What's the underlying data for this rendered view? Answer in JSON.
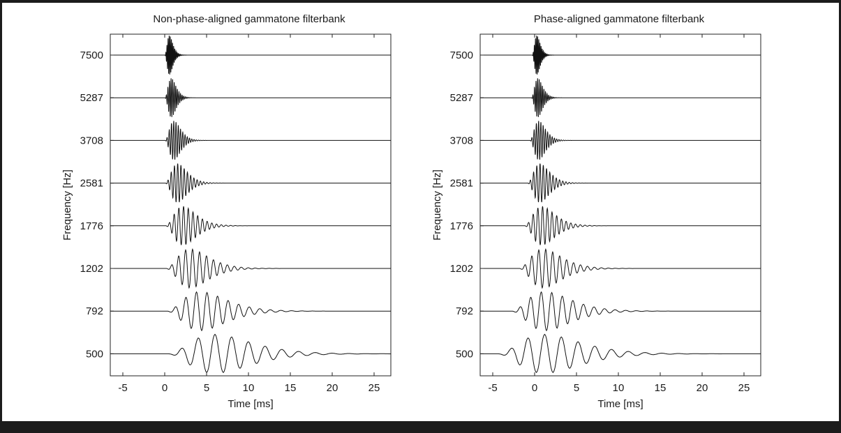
{
  "chart_data": [
    {
      "type": "line",
      "title": "Non-phase-aligned gammatone filterbank",
      "xlabel": "Time [ms]",
      "ylabel": "Frequency [Hz]",
      "xlim": [
        -6.5,
        27
      ],
      "xticks": [
        -5,
        0,
        5,
        10,
        15,
        20,
        25
      ],
      "yticks": [
        7500,
        5287,
        3708,
        2581,
        1776,
        1202,
        792,
        500
      ],
      "grid": false,
      "series": [
        {
          "center_freq_hz": 7500,
          "start_ms": 0
        },
        {
          "center_freq_hz": 5287,
          "start_ms": 0
        },
        {
          "center_freq_hz": 3708,
          "start_ms": 0
        },
        {
          "center_freq_hz": 2581,
          "start_ms": 0
        },
        {
          "center_freq_hz": 1776,
          "start_ms": 0
        },
        {
          "center_freq_hz": 1202,
          "start_ms": 0
        },
        {
          "center_freq_hz": 792,
          "start_ms": 0
        },
        {
          "center_freq_hz": 500,
          "start_ms": 0
        }
      ]
    },
    {
      "type": "line",
      "title": "Phase-aligned gammatone filterbank",
      "xlabel": "Time [ms]",
      "ylabel": "Frequency [Hz]",
      "xlim": [
        -6.5,
        27
      ],
      "xticks": [
        -5,
        0,
        5,
        10,
        15,
        20,
        25
      ],
      "yticks": [
        7500,
        5287,
        3708,
        2581,
        1776,
        1202,
        792,
        500
      ],
      "grid": false,
      "series": [
        {
          "center_freq_hz": 7500,
          "start_ms": -0.3
        },
        {
          "center_freq_hz": 5287,
          "start_ms": -0.4
        },
        {
          "center_freq_hz": 3708,
          "start_ms": -0.6
        },
        {
          "center_freq_hz": 2581,
          "start_ms": -0.9
        },
        {
          "center_freq_hz": 1776,
          "start_ms": -1.3
        },
        {
          "center_freq_hz": 1202,
          "start_ms": -2.0
        },
        {
          "center_freq_hz": 792,
          "start_ms": -3.0
        },
        {
          "center_freq_hz": 500,
          "start_ms": -4.8
        }
      ]
    }
  ]
}
